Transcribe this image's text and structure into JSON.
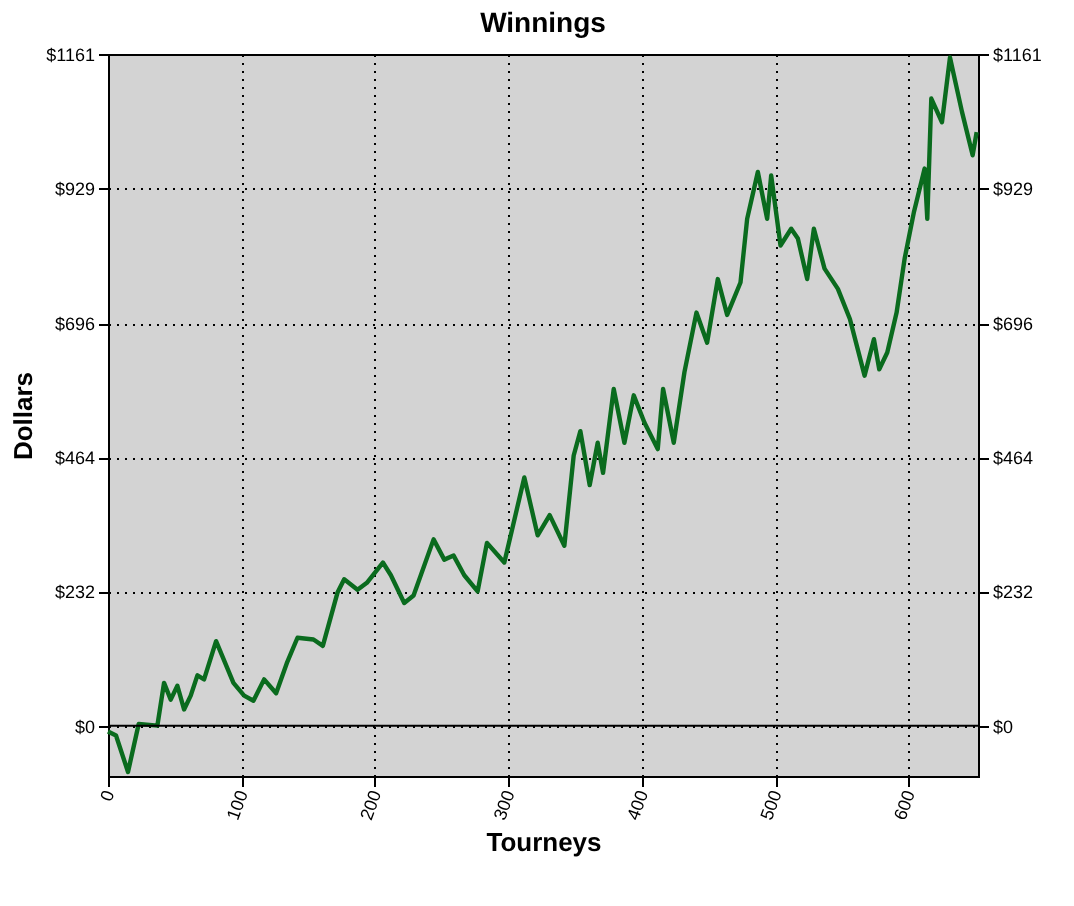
{
  "chart_data": {
    "type": "line",
    "title": "Winnings",
    "xlabel": "Tourneys",
    "ylabel": "Dollars",
    "x": [
      0,
      6,
      15,
      23,
      37,
      42,
      47,
      52,
      57,
      62,
      67,
      72,
      81,
      94,
      102,
      109,
      117,
      126,
      134,
      142,
      154,
      161,
      172,
      177,
      187,
      194,
      206,
      212,
      222,
      229,
      244,
      252,
      259,
      267,
      277,
      284,
      297,
      312,
      322,
      331,
      342,
      349,
      354,
      361,
      367,
      371,
      379,
      387,
      394,
      402,
      412,
      416,
      424,
      432,
      441,
      449,
      457,
      464,
      474,
      479,
      487,
      494,
      497,
      504,
      512,
      517,
      524,
      529,
      537,
      547,
      556,
      567,
      574,
      578,
      584,
      591,
      597,
      604,
      612,
      614,
      617,
      625,
      631,
      640,
      648,
      651
    ],
    "series": [
      {
        "color": "#0a6b1e",
        "values": [
          -10,
          -17,
          -80,
          3,
          0,
          74,
          45,
          69,
          28,
          52,
          87,
          80,
          146,
          74,
          52,
          43,
          80,
          56,
          108,
          152,
          149,
          138,
          230,
          253,
          235,
          247,
          282,
          260,
          212,
          225,
          322,
          287,
          294,
          260,
          232,
          316,
          282,
          429,
          329,
          364,
          311,
          467,
          509,
          416,
          489,
          437,
          582,
          489,
          571,
          524,
          478,
          582,
          489,
          611,
          714,
          662,
          772,
          710,
          766,
          876,
          957,
          876,
          951,
          830,
          859,
          842,
          772,
          859,
          790,
          755,
          703,
          605,
          668,
          616,
          645,
          714,
          807,
          888,
          963,
          876,
          1084,
          1043,
          1155,
          1061,
          986,
          1026
        ]
      }
    ],
    "xlim": [
      0,
      652
    ],
    "xticks": [
      0,
      100,
      200,
      300,
      400,
      500,
      600
    ],
    "ylim": [
      -87,
      1161
    ],
    "yticks": [
      {
        "value": 0,
        "label": "$0"
      },
      {
        "value": 232,
        "label": "$232"
      },
      {
        "value": 464,
        "label": "$464"
      },
      {
        "value": 696,
        "label": "$696"
      },
      {
        "value": 929,
        "label": "$929"
      },
      {
        "value": 1161,
        "label": "$1161"
      }
    ],
    "y2lim": [
      -87,
      1161
    ],
    "y2ticks": [
      {
        "value": 0,
        "label": "$0"
      },
      {
        "value": 232,
        "label": "$232"
      },
      {
        "value": 464,
        "label": "$464"
      },
      {
        "value": 696,
        "label": "$696"
      },
      {
        "value": 929,
        "label": "$929"
      },
      {
        "value": 1161,
        "label": "$1161"
      }
    ],
    "ref_lines": [
      {
        "axis": "y",
        "value": 0,
        "color": "#000000",
        "line_style": "solid"
      }
    ],
    "grid": true,
    "line_style": "solid",
    "marker": "none"
  }
}
